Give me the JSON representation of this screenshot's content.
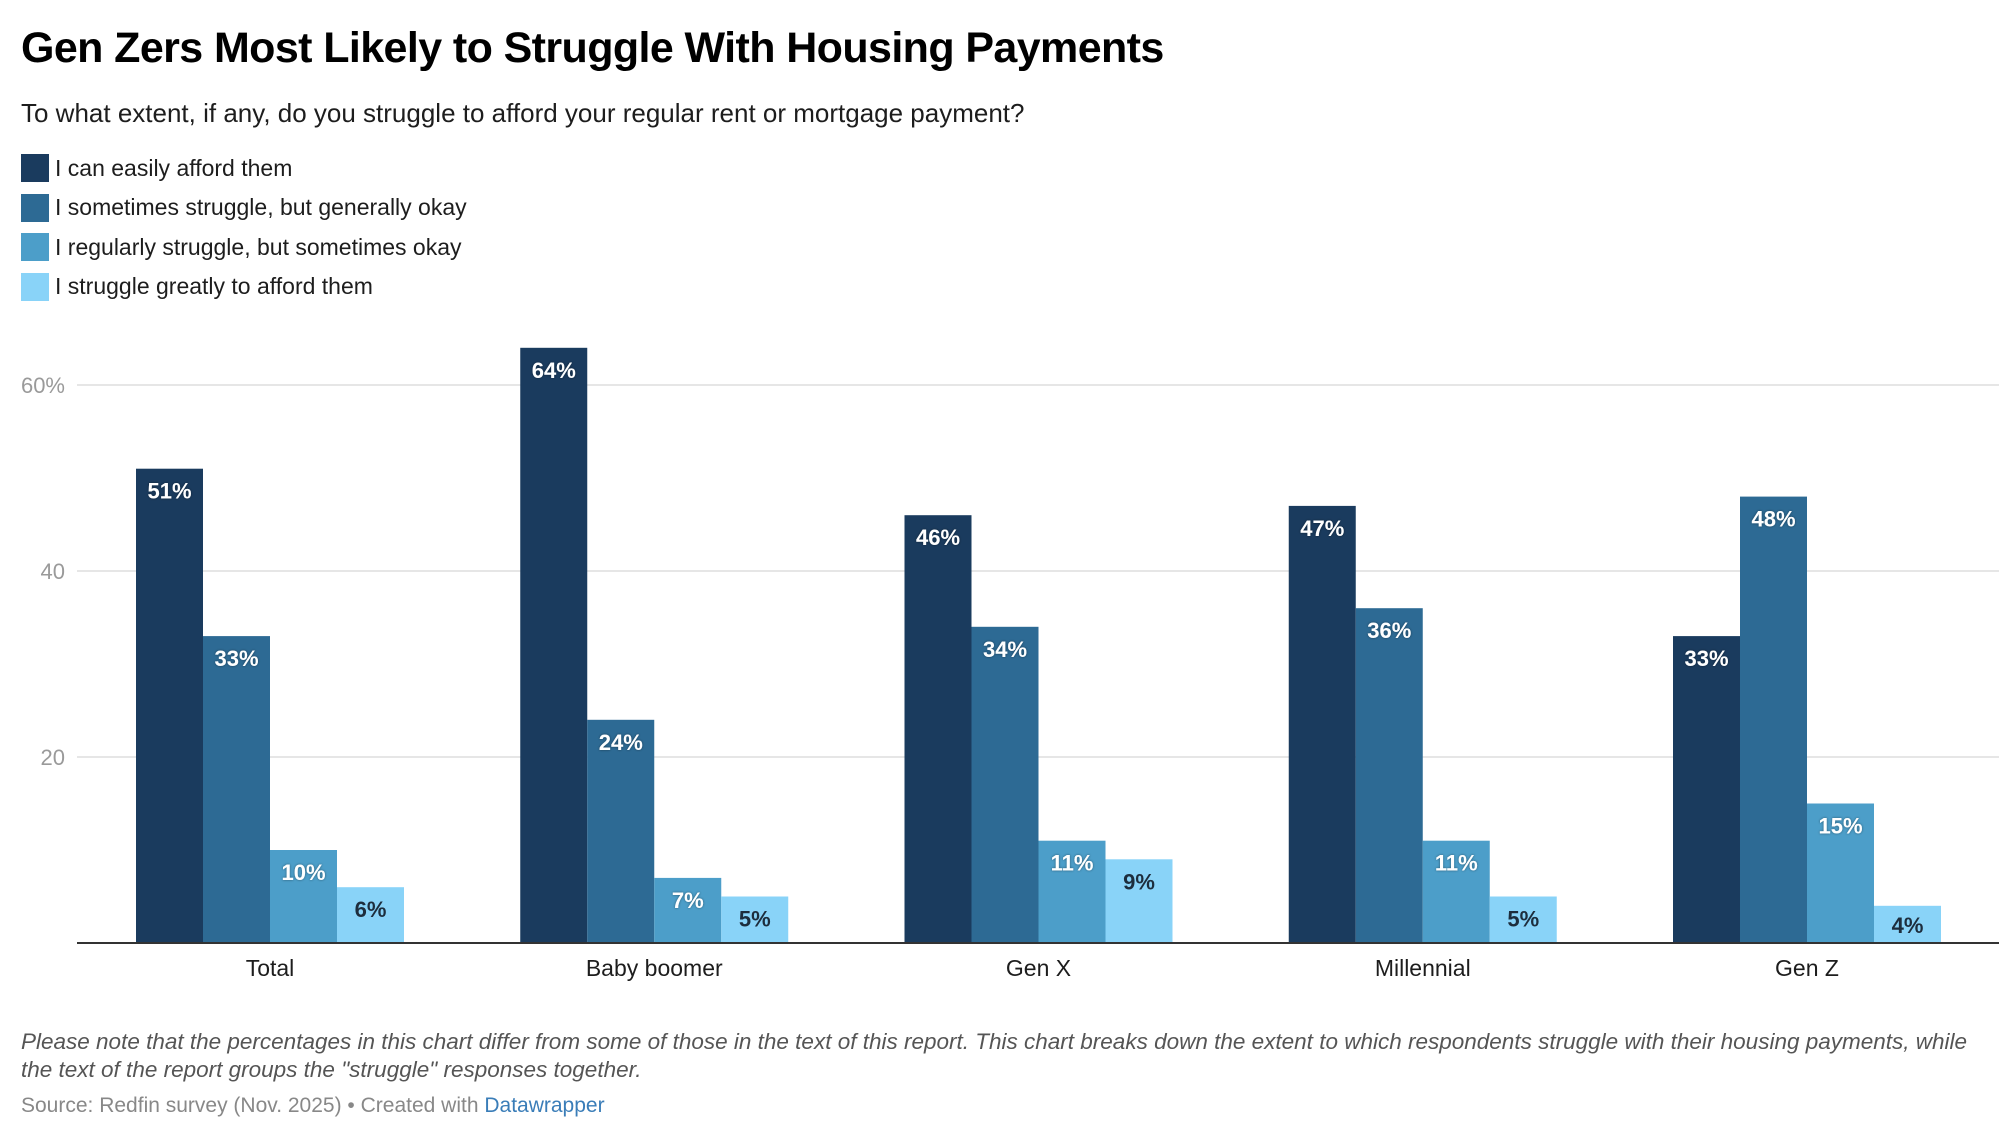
{
  "header": {
    "title": "Gen Zers Most Likely to Struggle With Housing Payments",
    "subtitle": "To what extent, if any, do you struggle to afford your regular rent or mortgage payment?"
  },
  "legend": {
    "items": [
      {
        "label": "I can easily afford them",
        "color": "#1a3b5e"
      },
      {
        "label": "I sometimes struggle, but generally okay",
        "color": "#2d6a94"
      },
      {
        "label": "I regularly struggle, but sometimes okay",
        "color": "#4c9ec9"
      },
      {
        "label": "I struggle greatly to afford them",
        "color": "#89d3f8"
      }
    ]
  },
  "chart_data": {
    "type": "bar",
    "title": "Gen Zers Most Likely to Struggle With Housing Payments",
    "subtitle": "To what extent, if any, do you struggle to afford your regular rent or mortgage payment?",
    "xlabel": "",
    "ylabel": "",
    "categories": [
      "Total",
      "Baby boomer",
      "Gen X",
      "Millennial",
      "Gen Z"
    ],
    "series": [
      {
        "name": "I can easily afford them",
        "color": "#1a3b5e",
        "label_color": "#ffffff",
        "values": [
          51,
          64,
          46,
          47,
          33
        ]
      },
      {
        "name": "I sometimes struggle, but generally okay",
        "color": "#2d6a94",
        "label_color": "#ffffff",
        "values": [
          33,
          24,
          34,
          36,
          48
        ]
      },
      {
        "name": "I regularly struggle, but sometimes okay",
        "color": "#4c9ec9",
        "label_color": "#ffffff",
        "values": [
          10,
          7,
          11,
          11,
          15
        ]
      },
      {
        "name": "I struggle greatly to afford them",
        "color": "#89d3f8",
        "label_color": "#1d2d3d",
        "values": [
          6,
          5,
          9,
          5,
          4
        ]
      }
    ],
    "value_suffix": "%",
    "ylim": [
      0,
      60
    ],
    "yticks": [
      {
        "value": 20,
        "label": "20"
      },
      {
        "value": 40,
        "label": "40"
      },
      {
        "value": 60,
        "label": "60%"
      }
    ],
    "grid": true,
    "legend_position": "top-left"
  },
  "footer": {
    "note": "Please note that the percentages in this chart differ from some of those in the text of this report. This chart breaks down the extent to which respondents struggle with their housing payments, while the text of the report groups the \"struggle\" responses together.",
    "source_prefix": "Source: Redfin survey (Nov. 2025) • Created with ",
    "source_link": "Datawrapper"
  }
}
